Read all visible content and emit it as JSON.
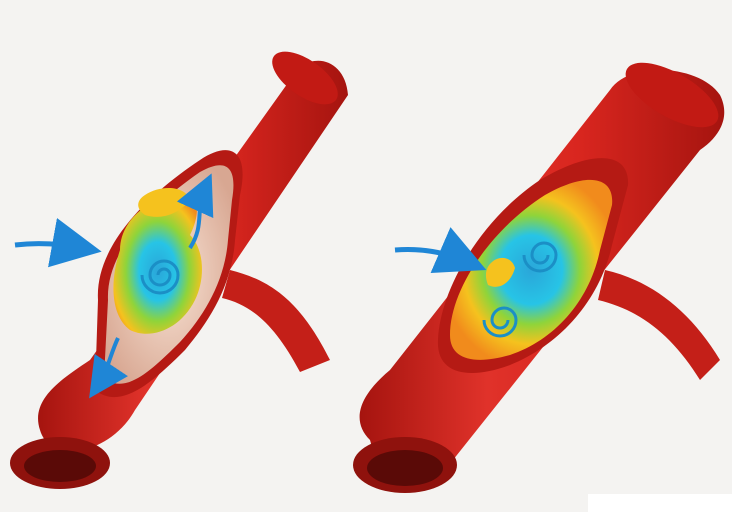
{
  "illustration": {
    "panels": [
      {
        "id": "left",
        "description_hidden": "",
        "flow_arrows": [
          "inflow-arrow",
          "upward-arrow",
          "downward-arrow"
        ]
      },
      {
        "id": "right",
        "flow_arrows": [
          "inflow-arrow"
        ]
      }
    ]
  },
  "colors": {
    "vessel": "#d9261f",
    "vessel_dark": "#a5140f",
    "vessel_inner": "#b51a14",
    "lumen": "#f2d9c8",
    "arrow": "#1f86d6",
    "vortex_cyan": "#27c4e6",
    "vortex_yellow": "#f5c21e",
    "vortex_green": "#8fd43a",
    "vortex_orange": "#f18b1c",
    "background": "#f4f3f1"
  },
  "icons": [
    "blood-vessel-left-icon",
    "blood-vessel-right-icon",
    "vortex-left-icon",
    "vortex-right-icon",
    "arrow-icon"
  ]
}
